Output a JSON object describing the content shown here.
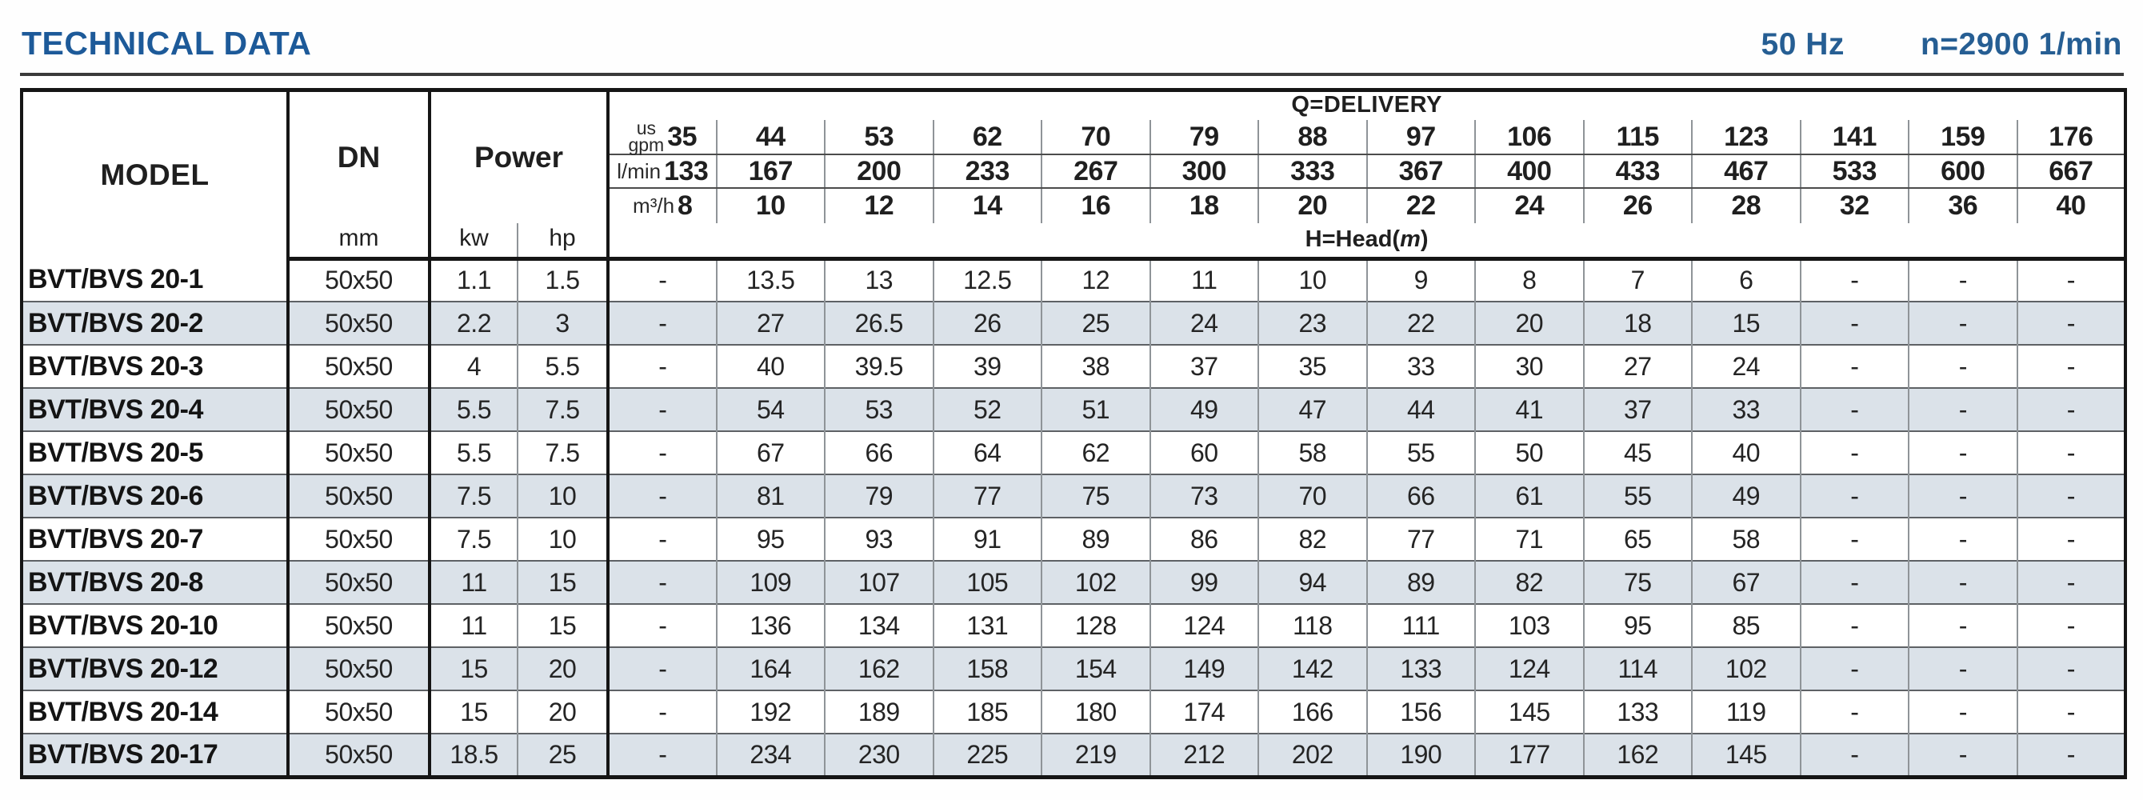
{
  "header": {
    "title": "TECHNICAL DATA",
    "frequency": "50 Hz",
    "speed": "n=2900 1/min"
  },
  "colors": {
    "accent_blue": "#1d5a99",
    "row_shade": "#dbe2e9",
    "border_dark": "#151515",
    "border_gray": "#8f9498"
  },
  "table": {
    "model_label": "MODEL",
    "dn_label": "DN",
    "dn_unit": "mm",
    "power_label": "Power",
    "power_unit_kw": "kw",
    "power_unit_hp": "hp",
    "delivery_label": "Q=DELIVERY",
    "head_label_prefix": "H=Head(",
    "head_label_var": "m",
    "head_label_suffix": ")",
    "units": {
      "us": "us",
      "gpm": "gpm",
      "lmin": "l/min",
      "m3h": "m³/h"
    },
    "gpm": [
      "35",
      "44",
      "53",
      "62",
      "70",
      "79",
      "88",
      "97",
      "106",
      "115",
      "123",
      "141",
      "159",
      "176"
    ],
    "lmin": [
      "133",
      "167",
      "200",
      "233",
      "267",
      "300",
      "333",
      "367",
      "400",
      "433",
      "467",
      "533",
      "600",
      "667"
    ],
    "m3h": [
      "8",
      "10",
      "12",
      "14",
      "16",
      "18",
      "20",
      "22",
      "24",
      "26",
      "28",
      "32",
      "36",
      "40"
    ],
    "rows": [
      {
        "model": "BVT/BVS 20-1",
        "dn": "50x50",
        "kw": "1.1",
        "hp": "1.5",
        "head": [
          "-",
          "13.5",
          "13",
          "12.5",
          "12",
          "11",
          "10",
          "9",
          "8",
          "7",
          "6",
          "-",
          "-",
          "-"
        ]
      },
      {
        "model": "BVT/BVS 20-2",
        "dn": "50x50",
        "kw": "2.2",
        "hp": "3",
        "head": [
          "-",
          "27",
          "26.5",
          "26",
          "25",
          "24",
          "23",
          "22",
          "20",
          "18",
          "15",
          "-",
          "-",
          "-"
        ]
      },
      {
        "model": "BVT/BVS 20-3",
        "dn": "50x50",
        "kw": "4",
        "hp": "5.5",
        "head": [
          "-",
          "40",
          "39.5",
          "39",
          "38",
          "37",
          "35",
          "33",
          "30",
          "27",
          "24",
          "-",
          "-",
          "-"
        ]
      },
      {
        "model": "BVT/BVS 20-4",
        "dn": "50x50",
        "kw": "5.5",
        "hp": "7.5",
        "head": [
          "-",
          "54",
          "53",
          "52",
          "51",
          "49",
          "47",
          "44",
          "41",
          "37",
          "33",
          "-",
          "-",
          "-"
        ]
      },
      {
        "model": "BVT/BVS 20-5",
        "dn": "50x50",
        "kw": "5.5",
        "hp": "7.5",
        "head": [
          "-",
          "67",
          "66",
          "64",
          "62",
          "60",
          "58",
          "55",
          "50",
          "45",
          "40",
          "-",
          "-",
          "-"
        ]
      },
      {
        "model": "BVT/BVS 20-6",
        "dn": "50x50",
        "kw": "7.5",
        "hp": "10",
        "head": [
          "-",
          "81",
          "79",
          "77",
          "75",
          "73",
          "70",
          "66",
          "61",
          "55",
          "49",
          "-",
          "-",
          "-"
        ]
      },
      {
        "model": "BVT/BVS 20-7",
        "dn": "50x50",
        "kw": "7.5",
        "hp": "10",
        "head": [
          "-",
          "95",
          "93",
          "91",
          "89",
          "86",
          "82",
          "77",
          "71",
          "65",
          "58",
          "-",
          "-",
          "-"
        ]
      },
      {
        "model": "BVT/BVS 20-8",
        "dn": "50x50",
        "kw": "11",
        "hp": "15",
        "head": [
          "-",
          "109",
          "107",
          "105",
          "102",
          "99",
          "94",
          "89",
          "82",
          "75",
          "67",
          "-",
          "-",
          "-"
        ]
      },
      {
        "model": "BVT/BVS 20-10",
        "dn": "50x50",
        "kw": "11",
        "hp": "15",
        "head": [
          "-",
          "136",
          "134",
          "131",
          "128",
          "124",
          "118",
          "111",
          "103",
          "95",
          "85",
          "-",
          "-",
          "-"
        ]
      },
      {
        "model": "BVT/BVS 20-12",
        "dn": "50x50",
        "kw": "15",
        "hp": "20",
        "head": [
          "-",
          "164",
          "162",
          "158",
          "154",
          "149",
          "142",
          "133",
          "124",
          "114",
          "102",
          "-",
          "-",
          "-"
        ]
      },
      {
        "model": "BVT/BVS 20-14",
        "dn": "50x50",
        "kw": "15",
        "hp": "20",
        "head": [
          "-",
          "192",
          "189",
          "185",
          "180",
          "174",
          "166",
          "156",
          "145",
          "133",
          "119",
          "-",
          "-",
          "-"
        ]
      },
      {
        "model": "BVT/BVS 20-17",
        "dn": "50x50",
        "kw": "18.5",
        "hp": "25",
        "head": [
          "-",
          "234",
          "230",
          "225",
          "219",
          "212",
          "202",
          "190",
          "177",
          "162",
          "145",
          "-",
          "-",
          "-"
        ]
      }
    ]
  }
}
